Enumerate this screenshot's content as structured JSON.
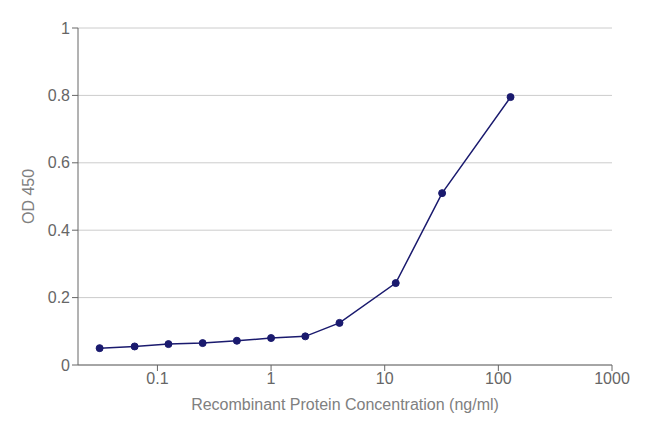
{
  "chart_data": {
    "type": "line",
    "x": [
      0.031,
      0.063,
      0.125,
      0.25,
      0.5,
      1.0,
      2.0,
      4.0,
      12.5,
      32.0,
      128.0
    ],
    "values": [
      0.05,
      0.055,
      0.062,
      0.065,
      0.072,
      0.08,
      0.085,
      0.125,
      0.243,
      0.51,
      0.795
    ],
    "color": "#1a1a6e",
    "marker": "circle",
    "xlabel": "Recombinant Protein Concentration (ng/ml)",
    "ylabel": "OD 450",
    "xlim": [
      0.02,
      1000
    ],
    "ylim": [
      0,
      1.0
    ],
    "xticks": [
      0.1,
      1,
      10,
      100,
      1000
    ],
    "yticks": [
      0,
      0.2,
      0.4,
      0.6,
      0.8,
      1
    ],
    "log": "x",
    "grid": true
  }
}
